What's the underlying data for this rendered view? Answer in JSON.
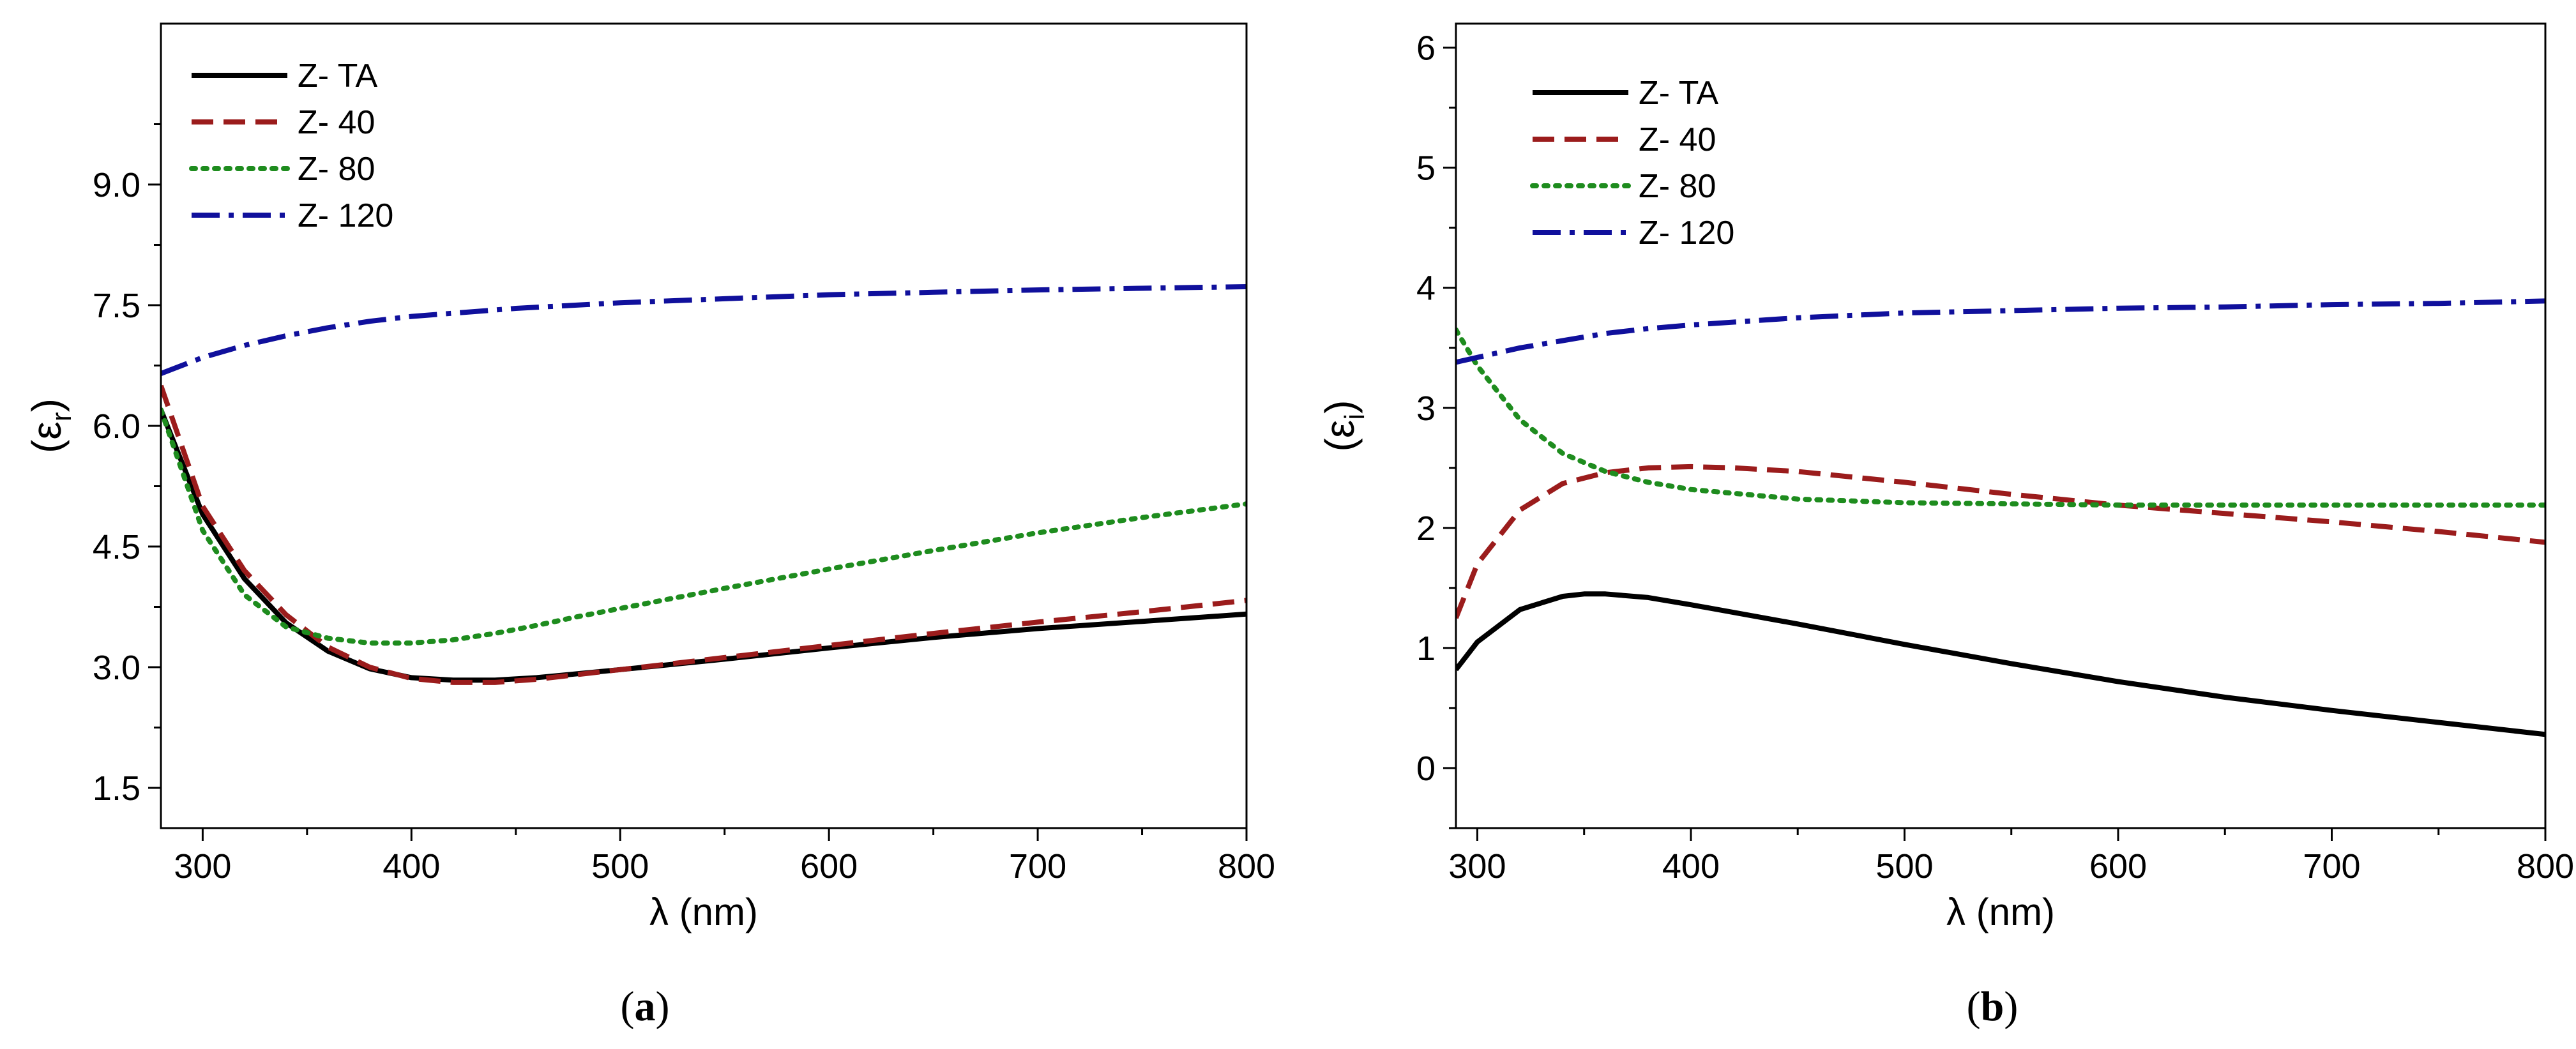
{
  "chart_data": [
    {
      "type": "line",
      "panel_label": "(a)",
      "panel_letter": "a",
      "xlabel": "λ (nm)",
      "ylabel": "ε",
      "ylabel_sub": "r",
      "xlim": [
        280,
        800
      ],
      "ylim": [
        1.0,
        11.0
      ],
      "xticks": [
        300,
        400,
        500,
        600,
        700,
        800
      ],
      "xtick_labels": [
        "300",
        "400",
        "500",
        "600",
        "700",
        "800"
      ],
      "yticks": [
        1.5,
        3.0,
        4.5,
        6.0,
        7.5,
        9.0
      ],
      "ytick_labels": [
        "1.5",
        "3.0",
        "4.5",
        "6.0",
        "7.5",
        "9.0"
      ],
      "legend_position": "top-left",
      "series": [
        {
          "name": "Z- TA",
          "color": "#000000",
          "style": "solid",
          "x": [
            280,
            300,
            320,
            340,
            360,
            380,
            400,
            420,
            440,
            460,
            480,
            500,
            550,
            600,
            650,
            700,
            750,
            800
          ],
          "y": [
            6.2,
            4.9,
            4.1,
            3.55,
            3.2,
            2.98,
            2.87,
            2.84,
            2.84,
            2.87,
            2.92,
            2.97,
            3.1,
            3.24,
            3.37,
            3.48,
            3.57,
            3.66
          ]
        },
        {
          "name": "Z- 40",
          "color": "#9b1c1c",
          "style": "dashed",
          "x": [
            280,
            300,
            320,
            340,
            360,
            380,
            400,
            420,
            440,
            460,
            480,
            500,
            550,
            600,
            650,
            700,
            750,
            800
          ],
          "y": [
            6.5,
            5.0,
            4.2,
            3.65,
            3.25,
            3.0,
            2.86,
            2.81,
            2.81,
            2.85,
            2.91,
            2.97,
            3.12,
            3.27,
            3.42,
            3.56,
            3.69,
            3.83
          ]
        },
        {
          "name": "Z- 80",
          "color": "#1e8c1e",
          "style": "dotted",
          "x": [
            280,
            300,
            320,
            340,
            360,
            380,
            400,
            420,
            440,
            460,
            480,
            500,
            550,
            600,
            650,
            700,
            750,
            800
          ],
          "y": [
            6.2,
            4.7,
            3.9,
            3.5,
            3.36,
            3.3,
            3.3,
            3.34,
            3.42,
            3.52,
            3.63,
            3.73,
            3.98,
            4.22,
            4.45,
            4.67,
            4.86,
            5.03
          ]
        },
        {
          "name": "Z- 120",
          "color": "#10109c",
          "style": "dashdot",
          "x": [
            280,
            300,
            320,
            340,
            360,
            380,
            400,
            450,
            500,
            550,
            600,
            650,
            700,
            750,
            800
          ],
          "y": [
            6.65,
            6.85,
            7.0,
            7.12,
            7.22,
            7.3,
            7.36,
            7.46,
            7.53,
            7.58,
            7.63,
            7.66,
            7.69,
            7.71,
            7.73
          ]
        }
      ]
    },
    {
      "type": "line",
      "panel_label": "(b)",
      "panel_letter": "b",
      "xlabel": "λ (nm)",
      "ylabel": "ε",
      "ylabel_sub": "i",
      "xlim": [
        290,
        800
      ],
      "ylim": [
        -0.5,
        6.2
      ],
      "xticks": [
        300,
        400,
        500,
        600,
        700,
        800
      ],
      "xtick_labels": [
        "300",
        "400",
        "500",
        "600",
        "700",
        "800"
      ],
      "yticks": [
        0,
        1,
        2,
        3,
        4,
        5,
        6
      ],
      "ytick_labels": [
        "0",
        "1",
        "2",
        "3",
        "4",
        "5",
        "6"
      ],
      "legend_position": "top-left",
      "series": [
        {
          "name": "Z- TA",
          "color": "#000000",
          "style": "solid",
          "x": [
            290,
            300,
            320,
            340,
            350,
            360,
            380,
            400,
            450,
            500,
            550,
            600,
            650,
            700,
            750,
            800
          ],
          "y": [
            0.82,
            1.05,
            1.32,
            1.43,
            1.45,
            1.45,
            1.42,
            1.36,
            1.2,
            1.03,
            0.87,
            0.72,
            0.59,
            0.48,
            0.38,
            0.28
          ]
        },
        {
          "name": "Z- 40",
          "color": "#9b1c1c",
          "style": "dashed",
          "x": [
            290,
            300,
            320,
            340,
            360,
            380,
            400,
            420,
            450,
            500,
            550,
            600,
            650,
            700,
            750,
            800
          ],
          "y": [
            1.25,
            1.7,
            2.15,
            2.37,
            2.46,
            2.5,
            2.51,
            2.5,
            2.47,
            2.38,
            2.28,
            2.19,
            2.12,
            2.05,
            1.97,
            1.88
          ]
        },
        {
          "name": "Z- 80",
          "color": "#1e8c1e",
          "style": "dotted",
          "x": [
            290,
            300,
            320,
            340,
            360,
            380,
            400,
            450,
            500,
            550,
            600,
            650,
            700,
            750,
            800
          ],
          "y": [
            3.65,
            3.35,
            2.9,
            2.62,
            2.47,
            2.38,
            2.32,
            2.24,
            2.21,
            2.2,
            2.19,
            2.19,
            2.19,
            2.19,
            2.19
          ]
        },
        {
          "name": "Z- 120",
          "color": "#10109c",
          "style": "dashdot",
          "x": [
            290,
            300,
            320,
            340,
            360,
            380,
            400,
            450,
            500,
            550,
            600,
            650,
            700,
            750,
            800
          ],
          "y": [
            3.38,
            3.42,
            3.5,
            3.56,
            3.62,
            3.66,
            3.69,
            3.75,
            3.79,
            3.81,
            3.83,
            3.84,
            3.86,
            3.87,
            3.89
          ]
        }
      ]
    }
  ]
}
